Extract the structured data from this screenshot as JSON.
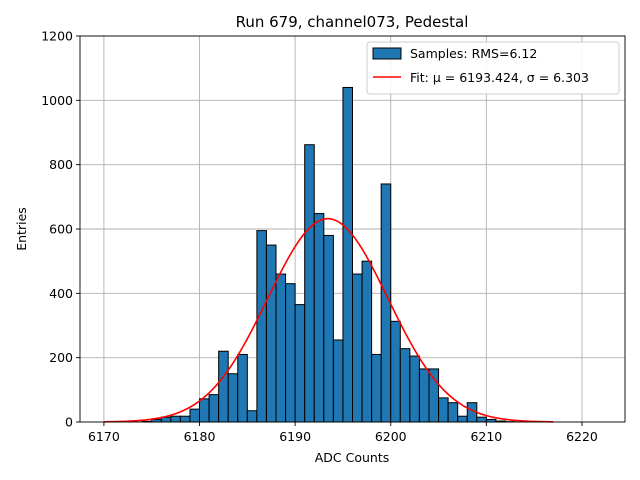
{
  "chart_data": {
    "type": "bar",
    "title": "Run 679, channel073, Pedestal",
    "xlabel": "ADC Counts",
    "ylabel": "Entries",
    "xlim": [
      6167.5,
      6224.5
    ],
    "ylim": [
      0,
      1200
    ],
    "xticks": [
      6170,
      6180,
      6190,
      6200,
      6210,
      6220
    ],
    "yticks": [
      0,
      200,
      400,
      600,
      800,
      1000,
      1200
    ],
    "grid": true,
    "legend_position": "top-right",
    "colors": {
      "bars": "#1f77b4",
      "fit": "#ff0000"
    },
    "histogram": {
      "name": "Samples: RMS=6.12",
      "bin_edges": [
        6174,
        6175,
        6176,
        6177,
        6178,
        6179,
        6180,
        6181,
        6182,
        6183,
        6184,
        6185,
        6186,
        6187,
        6188,
        6189,
        6190,
        6191,
        6192,
        6193,
        6194,
        6195,
        6196,
        6197,
        6198,
        6199,
        6200,
        6201,
        6202,
        6203,
        6204,
        6205,
        6206,
        6207,
        6208,
        6209,
        6210,
        6211,
        6212,
        6213
      ],
      "counts": [
        2,
        8,
        15,
        18,
        18,
        40,
        72,
        85,
        220,
        150,
        210,
        35,
        595,
        550,
        460,
        430,
        365,
        862,
        648,
        580,
        255,
        1040,
        460,
        500,
        210,
        740,
        313,
        228,
        205,
        165,
        165,
        75,
        60,
        18,
        60,
        15,
        8,
        3,
        1
      ]
    },
    "fit": {
      "name": "Fit: μ = 6193.424, σ = 6.303",
      "mu": 6193.424,
      "sigma": 6.303,
      "amplitude": 632,
      "x_range": [
        6170,
        6217
      ]
    }
  }
}
